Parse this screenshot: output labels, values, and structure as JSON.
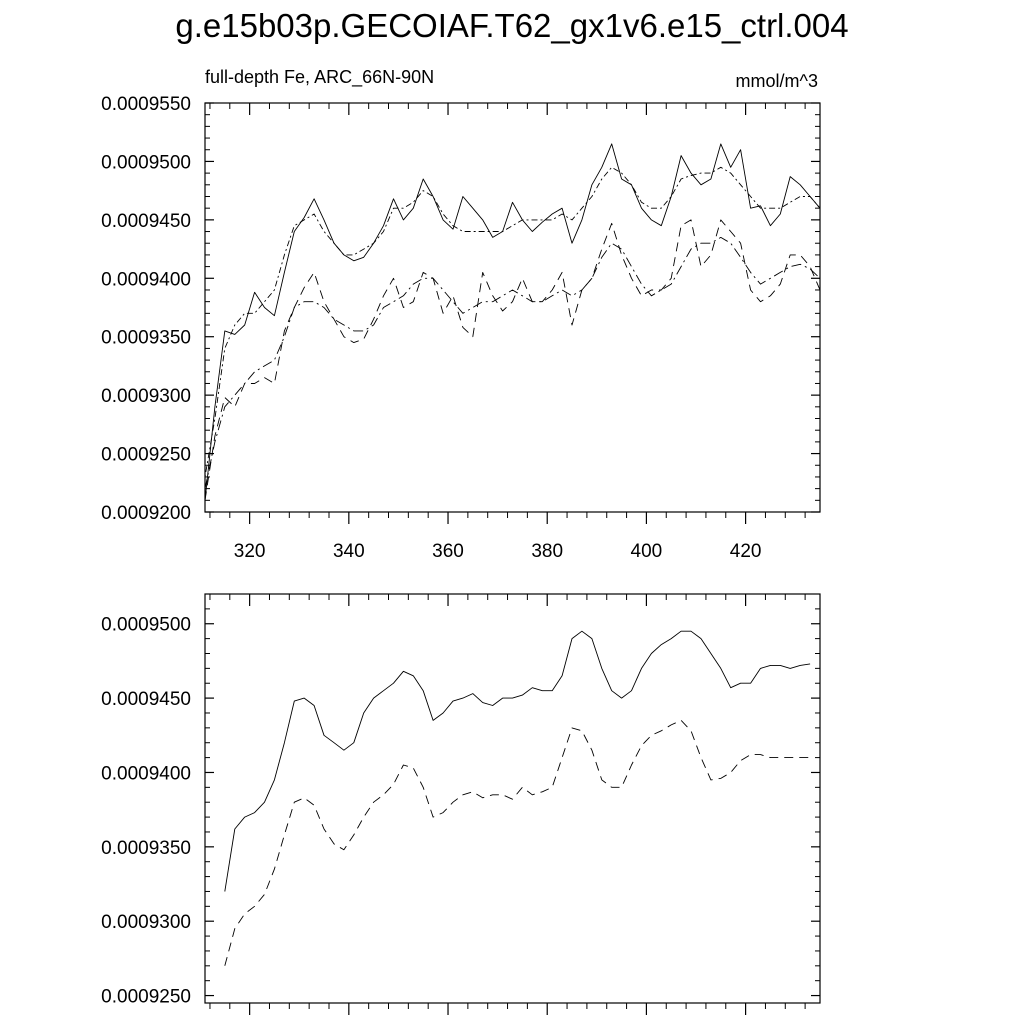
{
  "title": "g.e15b03p.GECOIAF.T62_gx1v6.e15_ctrl.004",
  "chart_data": [
    {
      "type": "line",
      "subtitle_left": "full-depth Fe, ARC_66N-90N",
      "subtitle_right": "mmol/m^3",
      "xlim": [
        311,
        435
      ],
      "ylim": [
        0.00092,
        0.000955
      ],
      "x_ticks": [
        320,
        340,
        360,
        380,
        400,
        420
      ],
      "x_tick_labels": [
        "320",
        "340",
        "360",
        "380",
        "400",
        "420"
      ],
      "y_ticks": [
        0.00092,
        0.000925,
        0.00093,
        0.000935,
        0.00094,
        0.000945,
        0.00095,
        0.000955
      ],
      "y_tick_labels": [
        "0.0009200",
        "0.0009250",
        "0.0009300",
        "0.0009350",
        "0.0009400",
        "0.0009450",
        "0.0009500",
        "0.0009550"
      ],
      "x": [
        311,
        313,
        315,
        317,
        319,
        321,
        323,
        325,
        327,
        329,
        331,
        333,
        335,
        337,
        339,
        341,
        343,
        345,
        347,
        349,
        351,
        353,
        355,
        357,
        359,
        361,
        363,
        365,
        367,
        369,
        371,
        373,
        375,
        377,
        379,
        381,
        383,
        385,
        387,
        389,
        391,
        393,
        395,
        397,
        399,
        401,
        403,
        405,
        407,
        409,
        411,
        413,
        415,
        417,
        419,
        421,
        423,
        425,
        427,
        429,
        431,
        433,
        435
      ],
      "series": [
        {
          "style": "solid",
          "values": [
            0.000921,
            0.000929,
            0.0009355,
            0.0009352,
            0.000936,
            0.0009388,
            0.0009375,
            0.0009368,
            0.0009405,
            0.000944,
            0.0009452,
            0.0009468,
            0.000945,
            0.000943,
            0.000942,
            0.0009415,
            0.0009418,
            0.000943,
            0.0009445,
            0.0009468,
            0.000945,
            0.000946,
            0.0009485,
            0.000947,
            0.000945,
            0.0009442,
            0.000947,
            0.000946,
            0.000945,
            0.0009435,
            0.000944,
            0.0009465,
            0.000945,
            0.000944,
            0.0009448,
            0.0009455,
            0.000946,
            0.000943,
            0.000945,
            0.000948,
            0.0009495,
            0.0009515,
            0.0009485,
            0.000948,
            0.000946,
            0.000945,
            0.0009445,
            0.000947,
            0.0009505,
            0.000949,
            0.000948,
            0.0009485,
            0.0009515,
            0.0009495,
            0.000951,
            0.000946,
            0.0009462,
            0.0009445,
            0.0009455,
            0.0009487,
            0.000948,
            0.000947,
            0.000946
          ]
        },
        {
          "style": "dash-dot",
          "values": [
            0.000923,
            0.000928,
            0.000934,
            0.000936,
            0.000937,
            0.000937,
            0.000938,
            0.000939,
            0.000942,
            0.0009445,
            0.000945,
            0.0009455,
            0.000944,
            0.000943,
            0.000942,
            0.000942,
            0.0009425,
            0.000943,
            0.000944,
            0.000946,
            0.000946,
            0.0009465,
            0.0009475,
            0.000947,
            0.0009455,
            0.0009445,
            0.000944,
            0.000944,
            0.000944,
            0.000944,
            0.000944,
            0.0009445,
            0.000945,
            0.000945,
            0.000945,
            0.000945,
            0.0009455,
            0.000945,
            0.000946,
            0.000947,
            0.0009485,
            0.0009495,
            0.000949,
            0.000948,
            0.0009465,
            0.000946,
            0.000946,
            0.000947,
            0.0009485,
            0.0009488,
            0.000949,
            0.000949,
            0.0009495,
            0.000949,
            0.000948,
            0.000947,
            0.000946,
            0.000946,
            0.000946,
            0.0009465,
            0.000947,
            0.000947,
            0.000946
          ]
        },
        {
          "style": "dashed",
          "values": [
            0.000921,
            0.0009265,
            0.0009298,
            0.000929,
            0.000931,
            0.000931,
            0.0009315,
            0.000931,
            0.0009355,
            0.0009375,
            0.0009392,
            0.0009405,
            0.000938,
            0.0009365,
            0.000935,
            0.0009345,
            0.0009348,
            0.0009365,
            0.0009385,
            0.00094,
            0.0009375,
            0.000938,
            0.0009405,
            0.00094,
            0.000937,
            0.0009385,
            0.0009358,
            0.000935,
            0.0009405,
            0.0009385,
            0.0009372,
            0.000938,
            0.00094,
            0.000938,
            0.000938,
            0.000939,
            0.0009405,
            0.000936,
            0.000939,
            0.00094,
            0.0009425,
            0.0009447,
            0.000942,
            0.00094,
            0.0009385,
            0.000939,
            0.000939,
            0.00094,
            0.0009445,
            0.000945,
            0.000941,
            0.000942,
            0.000945,
            0.000944,
            0.000943,
            0.000939,
            0.000938,
            0.0009385,
            0.0009395,
            0.000942,
            0.000942,
            0.000941,
            0.000939
          ]
        },
        {
          "style": "long-dash-dot",
          "values": [
            0.000922,
            0.000926,
            0.000929,
            0.00093,
            0.000931,
            0.000932,
            0.0009325,
            0.000933,
            0.000935,
            0.0009375,
            0.000938,
            0.000938,
            0.0009375,
            0.0009365,
            0.000936,
            0.0009355,
            0.0009355,
            0.000936,
            0.0009375,
            0.000938,
            0.0009385,
            0.0009395,
            0.00094,
            0.00094,
            0.000939,
            0.000938,
            0.000937,
            0.0009375,
            0.000938,
            0.000938,
            0.0009385,
            0.000939,
            0.0009385,
            0.000938,
            0.000938,
            0.0009385,
            0.000939,
            0.0009385,
            0.000939,
            0.00094,
            0.0009418,
            0.000943,
            0.0009425,
            0.000941,
            0.0009395,
            0.0009385,
            0.000939,
            0.0009395,
            0.000941,
            0.0009425,
            0.000943,
            0.000943,
            0.0009435,
            0.000943,
            0.0009418,
            0.0009405,
            0.0009395,
            0.00094,
            0.0009405,
            0.000941,
            0.0009412,
            0.0009408,
            0.00094
          ]
        }
      ]
    },
    {
      "type": "line",
      "xlim": [
        311,
        435
      ],
      "ylim": [
        0.0009245,
        0.000952
      ],
      "x_ticks": [
        320,
        340,
        360,
        380,
        400,
        420
      ],
      "y_ticks": [
        0.000925,
        0.00093,
        0.000935,
        0.00094,
        0.000945,
        0.00095
      ],
      "y_tick_labels": [
        "0.0009250",
        "0.0009300",
        "0.0009350",
        "0.0009400",
        "0.0009450",
        "0.0009500"
      ],
      "x": [
        315,
        317,
        319,
        321,
        323,
        325,
        327,
        329,
        331,
        333,
        335,
        337,
        339,
        341,
        343,
        345,
        347,
        349,
        351,
        353,
        355,
        357,
        359,
        361,
        363,
        365,
        367,
        369,
        371,
        373,
        375,
        377,
        379,
        381,
        383,
        385,
        387,
        389,
        391,
        393,
        395,
        397,
        399,
        401,
        403,
        405,
        407,
        409,
        411,
        413,
        415,
        417,
        419,
        421,
        423,
        425,
        427,
        429,
        431,
        433
      ],
      "series": [
        {
          "style": "solid",
          "values": [
            0.000932,
            0.0009362,
            0.000937,
            0.0009373,
            0.000938,
            0.0009395,
            0.000942,
            0.0009448,
            0.000945,
            0.0009445,
            0.0009425,
            0.000942,
            0.0009415,
            0.000942,
            0.000944,
            0.000945,
            0.0009455,
            0.000946,
            0.0009468,
            0.0009465,
            0.0009455,
            0.0009435,
            0.000944,
            0.0009448,
            0.000945,
            0.0009453,
            0.0009447,
            0.0009445,
            0.000945,
            0.000945,
            0.0009452,
            0.0009457,
            0.0009455,
            0.0009455,
            0.0009465,
            0.000949,
            0.0009495,
            0.000949,
            0.000947,
            0.0009455,
            0.000945,
            0.0009455,
            0.000947,
            0.000948,
            0.0009486,
            0.000949,
            0.0009495,
            0.0009495,
            0.000949,
            0.000948,
            0.000947,
            0.0009457,
            0.000946,
            0.000946,
            0.000947,
            0.0009472,
            0.0009472,
            0.000947,
            0.0009472,
            0.0009473
          ]
        },
        {
          "style": "dashed",
          "values": [
            0.000927,
            0.0009295,
            0.0009305,
            0.000931,
            0.0009318,
            0.0009335,
            0.0009358,
            0.000938,
            0.0009383,
            0.0009378,
            0.0009362,
            0.0009352,
            0.0009348,
            0.0009358,
            0.000937,
            0.000938,
            0.0009385,
            0.0009392,
            0.0009405,
            0.0009403,
            0.000939,
            0.000937,
            0.0009373,
            0.000938,
            0.0009385,
            0.0009387,
            0.0009383,
            0.0009385,
            0.0009385,
            0.0009382,
            0.000939,
            0.0009385,
            0.0009387,
            0.000939,
            0.000941,
            0.000943,
            0.0009428,
            0.0009415,
            0.0009395,
            0.000939,
            0.000939,
            0.0009405,
            0.0009418,
            0.0009425,
            0.0009428,
            0.0009432,
            0.0009435,
            0.0009428,
            0.000941,
            0.0009395,
            0.0009396,
            0.00094,
            0.0009408,
            0.0009412,
            0.0009412,
            0.000941,
            0.000941,
            0.000941,
            0.000941,
            0.000941
          ]
        }
      ]
    }
  ]
}
